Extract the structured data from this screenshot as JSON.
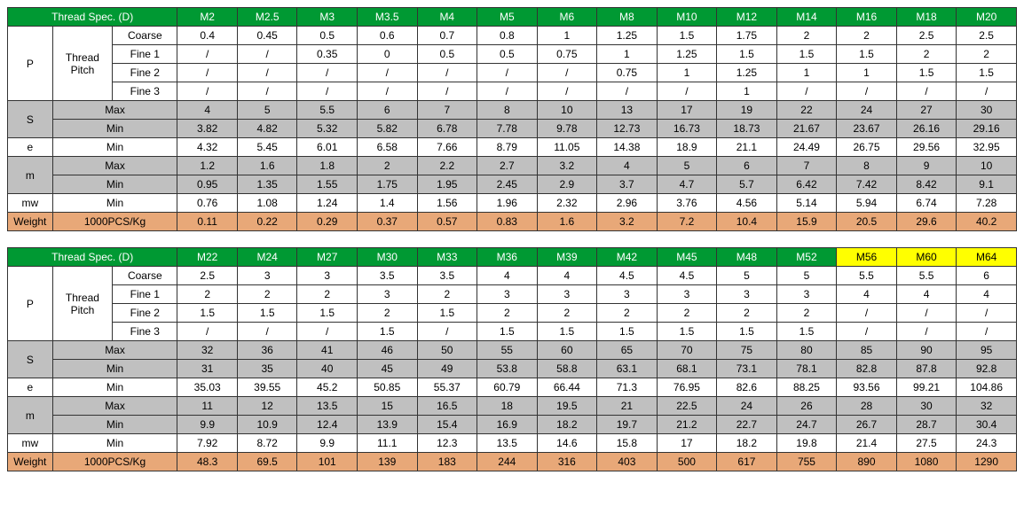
{
  "table1": {
    "header_label": "Thread Spec. (D)",
    "header_colspan": 3,
    "sizes": [
      "M2",
      "M2.5",
      "M3",
      "M3.5",
      "M4",
      "M5",
      "M6",
      "M8",
      "M10",
      "M12",
      "M14",
      "M16",
      "M18",
      "M20"
    ],
    "size_colors": [
      "green",
      "green",
      "green",
      "green",
      "green",
      "green",
      "green",
      "green",
      "green",
      "green",
      "green",
      "green",
      "green",
      "green"
    ],
    "rows": [
      {
        "bg": "white",
        "section": "P",
        "section_rows": 4,
        "sub": "Thread Pitch",
        "sub_rows": 4,
        "label": "Coarse",
        "vals": [
          "0.4",
          "0.45",
          "0.5",
          "0.6",
          "0.7",
          "0.8",
          "1",
          "1.25",
          "1.5",
          "1.75",
          "2",
          "2",
          "2.5",
          "2.5"
        ]
      },
      {
        "bg": "white",
        "label": "Fine 1",
        "vals": [
          "/",
          "/",
          "0.35",
          "0",
          "0.5",
          "0.5",
          "0.75",
          "1",
          "1.25",
          "1.5",
          "1.5",
          "1.5",
          "2",
          "2"
        ]
      },
      {
        "bg": "white",
        "label": "Fine 2",
        "vals": [
          "/",
          "/",
          "/",
          "/",
          "/",
          "/",
          "/",
          "0.75",
          "1",
          "1.25",
          "1",
          "1",
          "1.5",
          "1.5"
        ]
      },
      {
        "bg": "white",
        "label": "Fine 3",
        "vals": [
          "/",
          "/",
          "/",
          "/",
          "/",
          "/",
          "/",
          "/",
          "/",
          "1",
          "/",
          "/",
          "/",
          "/"
        ]
      },
      {
        "bg": "gray",
        "section": "S",
        "section_rows": 2,
        "label": "Max",
        "label_colspan": 2,
        "vals": [
          "4",
          "5",
          "5.5",
          "6",
          "7",
          "8",
          "10",
          "13",
          "17",
          "19",
          "22",
          "24",
          "27",
          "30"
        ]
      },
      {
        "bg": "gray",
        "label": "Min",
        "label_colspan": 2,
        "vals": [
          "3.82",
          "4.82",
          "5.32",
          "5.82",
          "6.78",
          "7.78",
          "9.78",
          "12.73",
          "16.73",
          "18.73",
          "21.67",
          "23.67",
          "26.16",
          "29.16"
        ]
      },
      {
        "bg": "white",
        "section": "e",
        "section_rows": 1,
        "label": "Min",
        "label_colspan": 2,
        "vals": [
          "4.32",
          "5.45",
          "6.01",
          "6.58",
          "7.66",
          "8.79",
          "11.05",
          "14.38",
          "18.9",
          "21.1",
          "24.49",
          "26.75",
          "29.56",
          "32.95"
        ]
      },
      {
        "bg": "gray",
        "section": "m",
        "section_rows": 2,
        "label": "Max",
        "label_colspan": 2,
        "vals": [
          "1.2",
          "1.6",
          "1.8",
          "2",
          "2.2",
          "2.7",
          "3.2",
          "4",
          "5",
          "6",
          "7",
          "8",
          "9",
          "10"
        ]
      },
      {
        "bg": "gray",
        "label": "Min",
        "label_colspan": 2,
        "vals": [
          "0.95",
          "1.35",
          "1.55",
          "1.75",
          "1.95",
          "2.45",
          "2.9",
          "3.7",
          "4.7",
          "5.7",
          "6.42",
          "7.42",
          "8.42",
          "9.1"
        ]
      },
      {
        "bg": "white",
        "section": "mw",
        "section_rows": 1,
        "label": "Min",
        "label_colspan": 2,
        "vals": [
          "0.76",
          "1.08",
          "1.24",
          "1.4",
          "1.56",
          "1.96",
          "2.32",
          "2.96",
          "3.76",
          "4.56",
          "5.14",
          "5.94",
          "6.74",
          "7.28"
        ]
      },
      {
        "bg": "orange",
        "section": "Weight",
        "section_rows": 1,
        "label": "1000PCS/Kg",
        "label_colspan": 2,
        "vals": [
          "0.11",
          "0.22",
          "0.29",
          "0.37",
          "0.57",
          "0.83",
          "1.6",
          "3.2",
          "7.2",
          "10.4",
          "15.9",
          "20.5",
          "29.6",
          "40.2"
        ]
      }
    ]
  },
  "table2": {
    "header_label": "Thread Spec. (D)",
    "header_colspan": 3,
    "sizes": [
      "M22",
      "M24",
      "M27",
      "M30",
      "M33",
      "M36",
      "M39",
      "M42",
      "M45",
      "M48",
      "M52",
      "M56",
      "M60",
      "M64"
    ],
    "size_colors": [
      "green",
      "green",
      "green",
      "green",
      "green",
      "green",
      "green",
      "green",
      "green",
      "green",
      "green",
      "yellow",
      "yellow",
      "yellow"
    ],
    "rows": [
      {
        "bg": "white",
        "section": "P",
        "section_rows": 4,
        "sub": "Thread Pitch",
        "sub_rows": 4,
        "label": "Coarse",
        "vals": [
          "2.5",
          "3",
          "3",
          "3.5",
          "3.5",
          "4",
          "4",
          "4.5",
          "4.5",
          "5",
          "5",
          "5.5",
          "5.5",
          "6"
        ]
      },
      {
        "bg": "white",
        "label": "Fine 1",
        "vals": [
          "2",
          "2",
          "2",
          "3",
          "2",
          "3",
          "3",
          "3",
          "3",
          "3",
          "3",
          "4",
          "4",
          "4"
        ]
      },
      {
        "bg": "white",
        "label": "Fine 2",
        "vals": [
          "1.5",
          "1.5",
          "1.5",
          "2",
          "1.5",
          "2",
          "2",
          "2",
          "2",
          "2",
          "2",
          "/",
          "/",
          "/"
        ]
      },
      {
        "bg": "white",
        "label": "Fine 3",
        "vals": [
          "/",
          "/",
          "/",
          "1.5",
          "/",
          "1.5",
          "1.5",
          "1.5",
          "1.5",
          "1.5",
          "1.5",
          "/",
          "/",
          "/"
        ]
      },
      {
        "bg": "gray",
        "section": "S",
        "section_rows": 2,
        "label": "Max",
        "label_colspan": 2,
        "vals": [
          "32",
          "36",
          "41",
          "46",
          "50",
          "55",
          "60",
          "65",
          "70",
          "75",
          "80",
          "85",
          "90",
          "95"
        ]
      },
      {
        "bg": "gray",
        "label": "Min",
        "label_colspan": 2,
        "vals": [
          "31",
          "35",
          "40",
          "45",
          "49",
          "53.8",
          "58.8",
          "63.1",
          "68.1",
          "73.1",
          "78.1",
          "82.8",
          "87.8",
          "92.8"
        ]
      },
      {
        "bg": "white",
        "section": "e",
        "section_rows": 1,
        "label": "Min",
        "label_colspan": 2,
        "vals": [
          "35.03",
          "39.55",
          "45.2",
          "50.85",
          "55.37",
          "60.79",
          "66.44",
          "71.3",
          "76.95",
          "82.6",
          "88.25",
          "93.56",
          "99.21",
          "104.86"
        ]
      },
      {
        "bg": "gray",
        "section": "m",
        "section_rows": 2,
        "label": "Max",
        "label_colspan": 2,
        "vals": [
          "11",
          "12",
          "13.5",
          "15",
          "16.5",
          "18",
          "19.5",
          "21",
          "22.5",
          "24",
          "26",
          "28",
          "30",
          "32"
        ]
      },
      {
        "bg": "gray",
        "label": "Min",
        "label_colspan": 2,
        "vals": [
          "9.9",
          "10.9",
          "12.4",
          "13.9",
          "15.4",
          "16.9",
          "18.2",
          "19.7",
          "21.2",
          "22.7",
          "24.7",
          "26.7",
          "28.7",
          "30.4"
        ]
      },
      {
        "bg": "white",
        "section": "mw",
        "section_rows": 1,
        "label": "Min",
        "label_colspan": 2,
        "vals": [
          "7.92",
          "8.72",
          "9.9",
          "11.1",
          "12.3",
          "13.5",
          "14.6",
          "15.8",
          "17",
          "18.2",
          "19.8",
          "21.4",
          "27.5",
          "24.3"
        ]
      },
      {
        "bg": "orange",
        "section": "Weight",
        "section_rows": 1,
        "label": "1000PCS/Kg",
        "label_colspan": 2,
        "vals": [
          "48.3",
          "69.5",
          "101",
          "139",
          "183",
          "244",
          "316",
          "403",
          "500",
          "617",
          "755",
          "890",
          "1080",
          "1290"
        ]
      }
    ]
  },
  "colors": {
    "green": "hdr-green",
    "yellow": "hdr-yellow"
  }
}
